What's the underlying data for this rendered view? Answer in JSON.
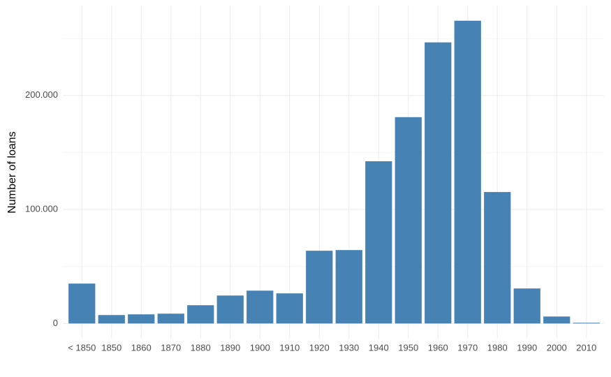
{
  "chart_data": {
    "type": "bar",
    "y_label": "Number of loans",
    "categories": [
      "< 1850",
      "1850",
      "1860",
      "1870",
      "1880",
      "1890",
      "1900",
      "1910",
      "1920",
      "1930",
      "1940",
      "1950",
      "1960",
      "1970",
      "1980",
      "1990",
      "2000",
      "2010"
    ],
    "values": [
      35000,
      7400,
      8000,
      8600,
      16000,
      24500,
      28800,
      26400,
      63800,
      64400,
      142300,
      181000,
      246600,
      265600,
      115300,
      30700,
      6100,
      600
    ],
    "color": "#4682b4",
    "ylim": [
      -13280,
      278880
    ],
    "yticks": [
      0,
      {
        "value": 100000,
        "label": "100.000"
      },
      {
        "value": 200000,
        "label": "200.000"
      }
    ],
    "y_minor_ticks": [
      50000,
      150000,
      250000
    ],
    "grid": true
  }
}
